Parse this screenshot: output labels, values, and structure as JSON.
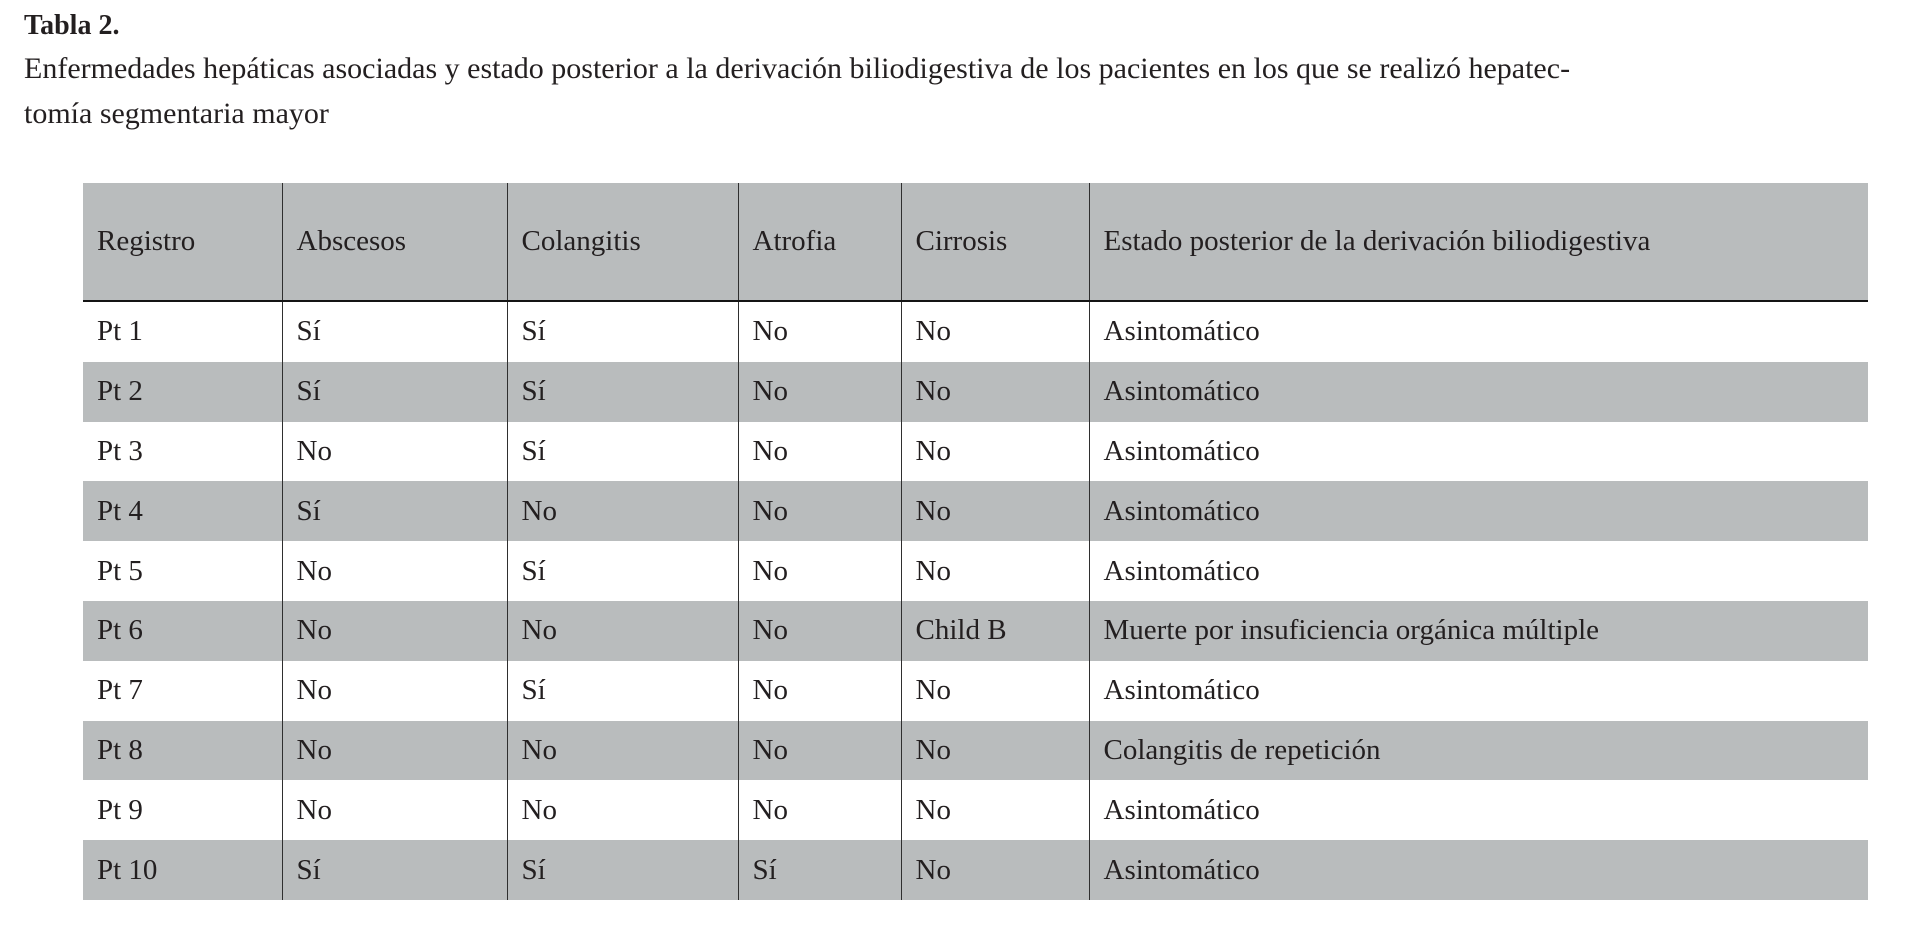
{
  "caption": {
    "label": "Tabla 2.",
    "lines": [
      "Enfermedades hepáticas asociadas y estado posterior a la derivación biliodigestiva de los pacientes en los que se realizó hepatec-",
      "tomía segmentaria mayor"
    ]
  },
  "table": {
    "columns": [
      "Registro",
      "Abscesos",
      "Colangitis",
      "Atrofia",
      "Cirrosis",
      "Estado posterior de la derivación biliodigestiva"
    ],
    "rows": [
      [
        "Pt 1",
        "Sí",
        "Sí",
        "No",
        "No",
        "Asintomático"
      ],
      [
        "Pt 2",
        "Sí",
        "Sí",
        "No",
        "No",
        "Asintomático"
      ],
      [
        "Pt 3",
        "No",
        "Sí",
        "No",
        "No",
        "Asintomático"
      ],
      [
        "Pt 4",
        "Sí",
        "No",
        "No",
        "No",
        "Asintomático"
      ],
      [
        "Pt 5",
        "No",
        "Sí",
        "No",
        "No",
        "Asintomático"
      ],
      [
        "Pt 6",
        "No",
        "No",
        "No",
        "Child B",
        "Muerte por insuficiencia orgánica múltiple"
      ],
      [
        "Pt 7",
        "No",
        "Sí",
        "No",
        "No",
        "Asintomático"
      ],
      [
        "Pt 8",
        "No",
        "No",
        "No",
        "No",
        "Colangitis de repetición"
      ],
      [
        "Pt 9",
        "No",
        "No",
        "No",
        "No",
        "Asintomático"
      ],
      [
        "Pt 10",
        "Sí",
        "Sí",
        "Sí",
        "No",
        "Asintomático"
      ]
    ]
  },
  "colors": {
    "stripe_gray": "#b9bcbd",
    "text": "#231f20",
    "column_separator": "#2f2f2f",
    "header_rule": "#141414",
    "background": "#ffffff"
  }
}
